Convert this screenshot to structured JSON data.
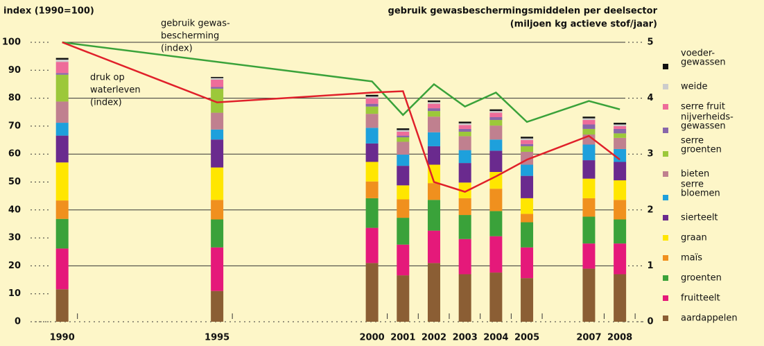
{
  "chart_data": {
    "type": "bar",
    "y_axis_label": "index (1990=100)",
    "y2_axis_label": [
      "gebruik gewasbeschermingsmiddelen per deelsector",
      "(miljoen kg actieve stof/jaar)"
    ],
    "annotations": [
      {
        "text": [
          "gebruik gewas-",
          "bescherming",
          "(index)"
        ],
        "color": "#3aa23a"
      },
      {
        "text": [
          "druk op",
          "waterleven",
          "(index)"
        ],
        "color": "#e0202a"
      }
    ],
    "x": [
      1990,
      1995,
      2000,
      2001,
      2002,
      2003,
      2004,
      2005,
      2007,
      2008
    ],
    "xlim": [
      1989,
      2008.4
    ],
    "xticks": [
      1990,
      1995,
      2000,
      2001,
      2002,
      2003,
      2004,
      2005,
      2007,
      2008
    ],
    "ylim": [
      0,
      100
    ],
    "yticks": [
      0,
      10,
      20,
      30,
      40,
      50,
      60,
      70,
      80,
      90,
      100
    ],
    "y2lim": [
      0,
      5
    ],
    "y2ticks": [
      0,
      1,
      2,
      3,
      4,
      5
    ],
    "grid": true,
    "series": [
      {
        "name": [
          "aardappelen"
        ],
        "color": "#8b5e34",
        "axis": "y2",
        "values": [
          0.58,
          0.55,
          1.05,
          0.83,
          1.05,
          0.85,
          0.88,
          0.78,
          0.95,
          0.85
        ]
      },
      {
        "name": [
          "fruitteelt"
        ],
        "color": "#e5197a",
        "axis": "y2",
        "values": [
          0.73,
          0.78,
          0.63,
          0.55,
          0.58,
          0.63,
          0.65,
          0.55,
          0.45,
          0.55
        ]
      },
      {
        "name": [
          "groenten"
        ],
        "color": "#3aa23a",
        "axis": "y2",
        "values": [
          0.53,
          0.5,
          0.53,
          0.48,
          0.55,
          0.43,
          0.45,
          0.45,
          0.48,
          0.43
        ]
      },
      {
        "name": [
          "maïs"
        ],
        "color": "#f0901e",
        "axis": "y2",
        "values": [
          0.33,
          0.35,
          0.3,
          0.33,
          0.3,
          0.3,
          0.4,
          0.15,
          0.33,
          0.35
        ]
      },
      {
        "name": [
          "graan"
        ],
        "color": "#ffe600",
        "axis": "y2",
        "values": [
          0.68,
          0.58,
          0.35,
          0.25,
          0.33,
          0.28,
          0.3,
          0.28,
          0.35,
          0.35
        ]
      },
      {
        "name": [
          "sierteelt"
        ],
        "color": "#6a2a8e",
        "axis": "y2",
        "values": [
          0.48,
          0.5,
          0.33,
          0.35,
          0.33,
          0.35,
          0.38,
          0.4,
          0.33,
          0.33
        ]
      },
      {
        "name": [
          "serre",
          "bloemen"
        ],
        "color": "#1ea0dc",
        "axis": "y2",
        "values": [
          0.23,
          0.18,
          0.28,
          0.2,
          0.25,
          0.23,
          0.2,
          0.2,
          0.28,
          0.23
        ]
      },
      {
        "name": [
          "bieten"
        ],
        "color": "#c0808f",
        "axis": "y2",
        "values": [
          0.38,
          0.3,
          0.25,
          0.23,
          0.28,
          0.25,
          0.25,
          0.23,
          0.18,
          0.2
        ]
      },
      {
        "name": [
          "serre",
          "groenten"
        ],
        "color": "#9cc83a",
        "axis": "y2",
        "values": [
          0.48,
          0.43,
          0.13,
          0.08,
          0.1,
          0.08,
          0.1,
          0.1,
          0.1,
          0.08
        ]
      },
      {
        "name": [
          "nijverheids-",
          "gewassen"
        ],
        "color": "#8866aa",
        "axis": "y2",
        "values": [
          0.03,
          0.03,
          0.05,
          0.03,
          0.05,
          0.05,
          0.05,
          0.04,
          0.08,
          0.08
        ]
      },
      {
        "name": [
          "serre fruit"
        ],
        "color": "#ee6c9a",
        "axis": "y2",
        "values": [
          0.2,
          0.13,
          0.1,
          0.07,
          0.08,
          0.07,
          0.08,
          0.07,
          0.08,
          0.05
        ]
      },
      {
        "name": [
          "weide"
        ],
        "color": "#cccccc",
        "axis": "y2",
        "values": [
          0.04,
          0.03,
          0.03,
          0.03,
          0.03,
          0.03,
          0.03,
          0.03,
          0.03,
          0.03
        ]
      },
      {
        "name": [
          "voeder-",
          "gewassen"
        ],
        "color": "#111111",
        "axis": "y2",
        "values": [
          0.03,
          0.02,
          0.03,
          0.03,
          0.03,
          0.03,
          0.03,
          0.03,
          0.03,
          0.03
        ]
      }
    ],
    "lines": [
      {
        "color": "#3aa23a",
        "x": [
          1990,
          2000,
          2001,
          2002,
          2003,
          2004,
          2005,
          2007,
          2008
        ],
        "values": [
          100,
          86,
          74,
          85,
          77,
          82,
          71.5,
          79,
          76
        ]
      },
      {
        "color": "#e0202a",
        "x": [
          1990,
          1995,
          2000,
          2001,
          2002,
          2003,
          2004,
          2005,
          2007,
          2008
        ],
        "values": [
          100,
          78.5,
          82,
          82.5,
          50,
          46.5,
          52,
          58,
          66.5,
          58
        ]
      }
    ]
  }
}
